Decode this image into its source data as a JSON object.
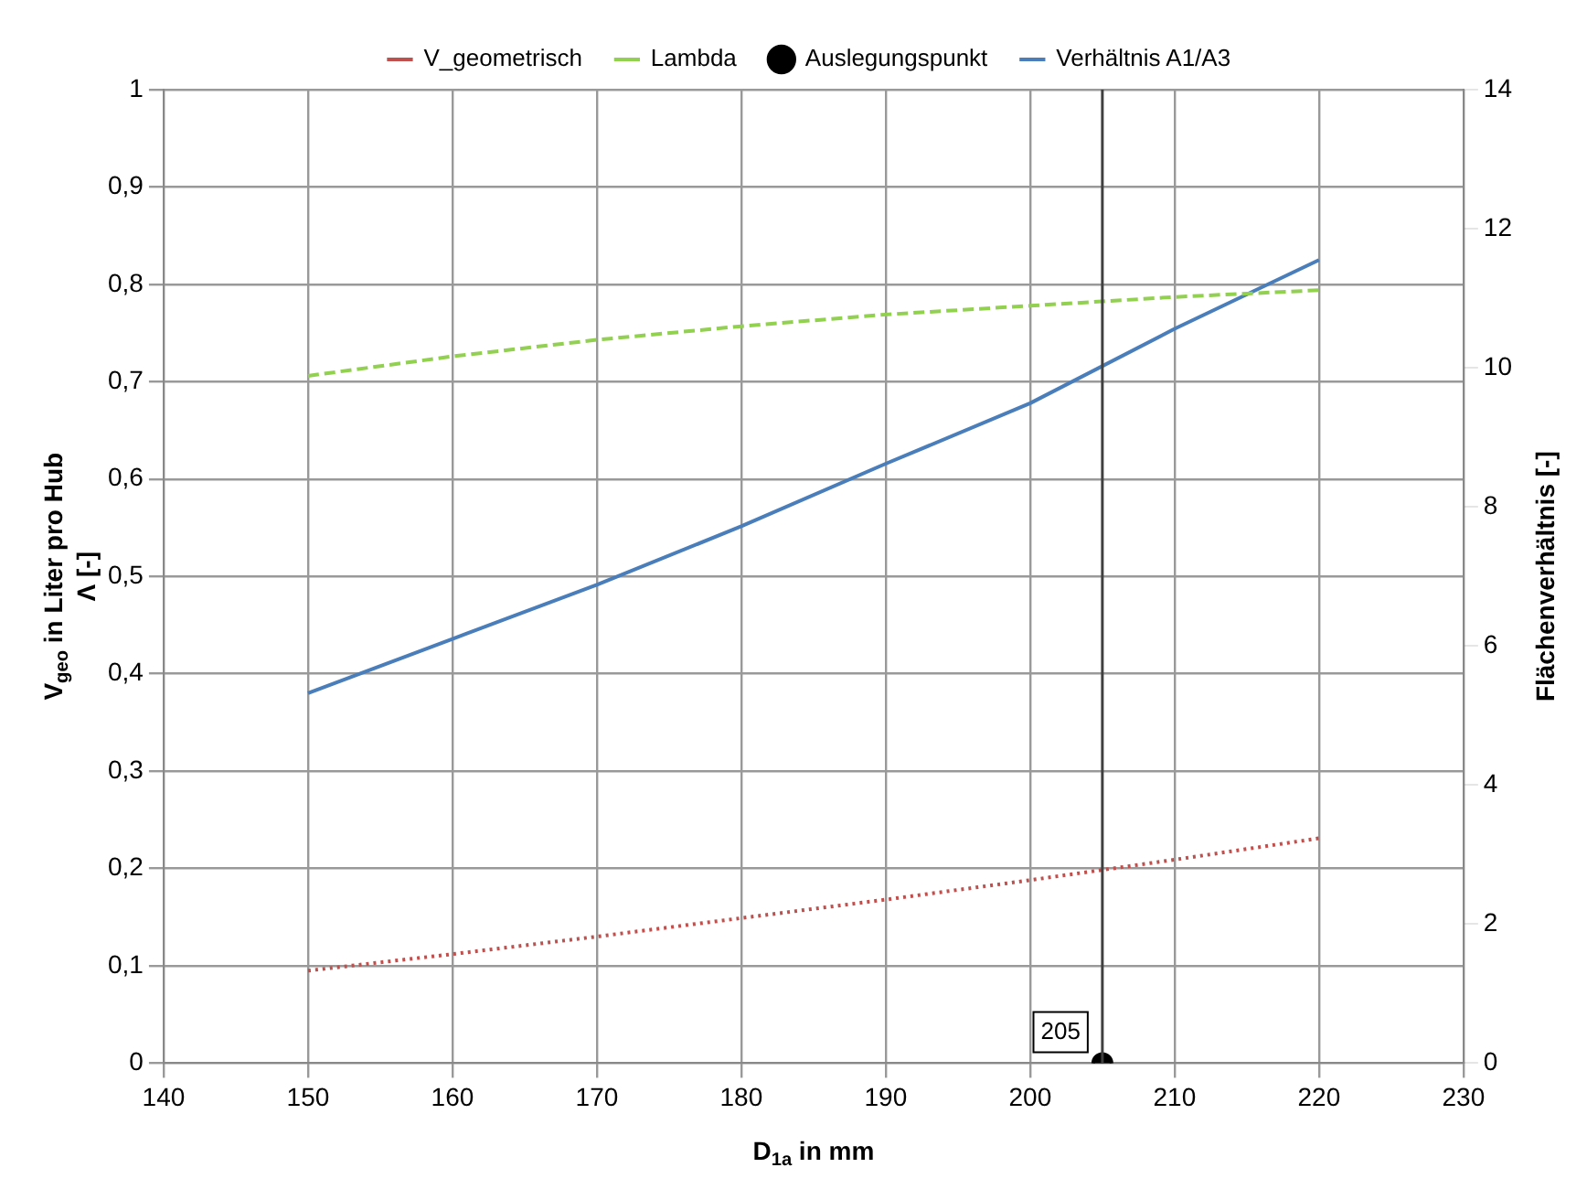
{
  "chart_data": {
    "type": "line",
    "xlabel": "D$_{1a}$ in mm",
    "ylabel": [
      "V$_{geo}$ in Liter pro Hub",
      "Λ [-]"
    ],
    "y2label": "Flächenverhältnis [-]",
    "x": [
      150,
      160,
      170,
      180,
      190,
      200,
      210,
      220
    ],
    "series": [
      {
        "name": "V_geometrisch",
        "color": "#c0504d",
        "line_style": "dotted",
        "values": [
          0.095,
          0.112,
          0.13,
          0.149,
          0.168,
          0.188,
          0.209,
          0.231
        ]
      },
      {
        "name": "Lambda",
        "color": "#92d050",
        "line_style": "dashed",
        "values": [
          0.706,
          0.726,
          0.743,
          0.757,
          0.769,
          0.778,
          0.787,
          0.794
        ]
      },
      {
        "name": "Auslegungspunkt",
        "type": "scatter",
        "color": "#000000",
        "marker": "circle",
        "x": [
          205
        ],
        "values": [
          0
        ]
      },
      {
        "name": "Verhältnis A1/A3",
        "color": "#4a7ebb",
        "line_style": "solid",
        "axis": "y2",
        "values": [
          5.32,
          6.1,
          6.88,
          7.72,
          8.62,
          9.49,
          10.56,
          11.55
        ]
      }
    ],
    "ref_lines": [
      {
        "axis": "x",
        "value": 205,
        "color": "#404040"
      }
    ],
    "annotations": [
      {
        "text": "205",
        "x": 205,
        "y": 0
      }
    ],
    "xlim": [
      140,
      230
    ],
    "xticks": [
      140,
      150,
      160,
      170,
      180,
      190,
      200,
      210,
      220,
      230
    ],
    "ylim": [
      0,
      1
    ],
    "yticks": [
      0,
      {
        "value": 0.1,
        "label": "0,1"
      },
      {
        "value": 0.2,
        "label": "0,2"
      },
      {
        "value": 0.3,
        "label": "0,3"
      },
      {
        "value": 0.4,
        "label": "0,4"
      },
      {
        "value": 0.5,
        "label": "0,5"
      },
      {
        "value": 0.6,
        "label": "0,6"
      },
      {
        "value": 0.7,
        "label": "0,7"
      },
      {
        "value": 0.8,
        "label": "0,8"
      },
      {
        "value": 0.9,
        "label": "0,9"
      },
      1
    ],
    "y2lim": [
      0,
      14
    ],
    "y2ticks": [
      0,
      2,
      4,
      6,
      8,
      10,
      12,
      14
    ],
    "grid": true,
    "legend": "top",
    "marker": "none"
  }
}
